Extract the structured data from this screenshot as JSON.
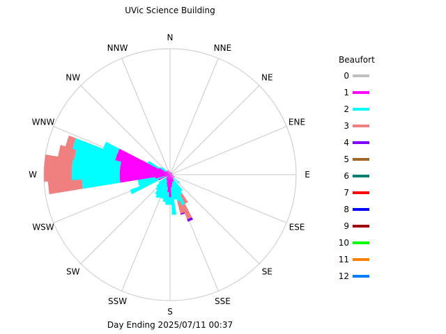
{
  "chart_data": {
    "type": "wind-rose",
    "title": "UVic Science Building",
    "subtitle": "Day Ending 2025/07/11 00:37",
    "directions": [
      "N",
      "NNE",
      "NE",
      "ENE",
      "E",
      "ESE",
      "SE",
      "SSE",
      "S",
      "SSW",
      "SW",
      "WSW",
      "W",
      "WNW",
      "NW",
      "NNW"
    ],
    "rmax": 1.0,
    "legend": {
      "title": "Beaufort",
      "placement": "right",
      "entries": [
        {
          "label": "0",
          "color": "#c0c0c0"
        },
        {
          "label": "1",
          "color": "#ff00ff"
        },
        {
          "label": "2",
          "color": "#00ffff"
        },
        {
          "label": "3",
          "color": "#f08080"
        },
        {
          "label": "4",
          "color": "#8000ff"
        },
        {
          "label": "5",
          "color": "#a0682a"
        },
        {
          "label": "6",
          "color": "#008070"
        },
        {
          "label": "7",
          "color": "#ff0000"
        },
        {
          "label": "8",
          "color": "#0000ff"
        },
        {
          "label": "9",
          "color": "#a00000"
        },
        {
          "label": "10",
          "color": "#00ff00"
        },
        {
          "label": "11",
          "color": "#ff8000"
        },
        {
          "label": "12",
          "color": "#0080ff"
        }
      ]
    },
    "bins": [
      {
        "deg": 240,
        "segments": [
          0.0,
          0.02
        ]
      },
      {
        "deg": 246,
        "segments": [
          0.0,
          0.1,
          0.24
        ]
      },
      {
        "deg": 252,
        "segments": [
          0.0,
          0.04,
          0.22
        ]
      },
      {
        "deg": 258,
        "segments": [
          0.0,
          0.12,
          0.14
        ]
      },
      {
        "deg": 264,
        "segments": [
          0.0,
          0.4,
          0.3,
          0.27
        ]
      },
      {
        "deg": 270,
        "segments": [
          0.0,
          0.4,
          0.38,
          0.22
        ]
      },
      {
        "deg": 276,
        "segments": [
          0.0,
          0.4,
          0.38,
          0.22
        ]
      },
      {
        "deg": 282,
        "segments": [
          0.0,
          0.4,
          0.37,
          0.13
        ]
      },
      {
        "deg": 288,
        "segments": [
          0.0,
          0.45,
          0.35,
          0.06
        ]
      },
      {
        "deg": 294,
        "segments": [
          0.0,
          0.45,
          0.12
        ]
      },
      {
        "deg": 300,
        "segments": [
          0.0,
          0.1,
          0.1
        ]
      },
      {
        "deg": 168,
        "segments": [
          0.0,
          0.08,
          0.12
        ]
      },
      {
        "deg": 162,
        "segments": [
          0.0,
          0.06,
          0.16,
          0.1,
          0.01
        ]
      },
      {
        "deg": 156,
        "segments": [
          0.0,
          0.06,
          0.2,
          0.12,
          0.02
        ]
      },
      {
        "deg": 150,
        "segments": [
          0.0,
          0.06,
          0.12,
          0.08
        ]
      },
      {
        "deg": 144,
        "segments": [
          0.0,
          0.04,
          0.12
        ]
      },
      {
        "deg": 174,
        "segments": [
          0.0,
          0.1,
          0.22
        ]
      },
      {
        "deg": 180,
        "segments": [
          0.0,
          0.18,
          0.06
        ]
      },
      {
        "deg": 186,
        "segments": [
          0.0,
          0.14,
          0.1
        ]
      },
      {
        "deg": 192,
        "segments": [
          0.0,
          0.1,
          0.12
        ]
      },
      {
        "deg": 198,
        "segments": [
          0.0,
          0.08,
          0.12
        ]
      },
      {
        "deg": 204,
        "segments": [
          0.0,
          0.06,
          0.14
        ]
      },
      {
        "deg": 210,
        "segments": [
          0.0,
          0.05,
          0.16
        ]
      },
      {
        "deg": 216,
        "segments": [
          0.0,
          0.05,
          0.14
        ]
      },
      {
        "deg": 222,
        "segments": [
          0.0,
          0.04,
          0.12
        ]
      },
      {
        "deg": 228,
        "segments": [
          0.0,
          0.04,
          0.1
        ]
      },
      {
        "deg": 234,
        "segments": [
          0.0,
          0.03,
          0.08
        ]
      },
      {
        "deg": 132,
        "segments": [
          0.0,
          0.04,
          0.06
        ]
      },
      {
        "deg": 120,
        "segments": [
          0.0,
          0.04
        ]
      },
      {
        "deg": 108,
        "segments": [
          0.0,
          0.03
        ]
      },
      {
        "deg": 96,
        "segments": [
          0.0,
          0.02
        ]
      },
      {
        "deg": 84,
        "segments": [
          0.0,
          0.02
        ]
      },
      {
        "deg": 72,
        "segments": [
          0.0,
          0.02
        ]
      },
      {
        "deg": 60,
        "segments": [
          0.0,
          0.02
        ]
      },
      {
        "deg": 48,
        "segments": [
          0.0,
          0.02
        ]
      },
      {
        "deg": 36,
        "segments": [
          0.0,
          0.02
        ]
      },
      {
        "deg": 24,
        "segments": [
          0.0,
          0.02
        ]
      },
      {
        "deg": 12,
        "segments": [
          0.0,
          0.02
        ]
      },
      {
        "deg": 0,
        "segments": [
          0.0,
          0.02
        ]
      },
      {
        "deg": 348,
        "segments": [
          0.0,
          0.03
        ]
      },
      {
        "deg": 336,
        "segments": [
          0.0,
          0.04
        ]
      },
      {
        "deg": 324,
        "segments": [
          0.0,
          0.04
        ]
      },
      {
        "deg": 312,
        "segments": [
          0.0,
          0.04,
          0.04
        ]
      },
      {
        "deg": 306,
        "segments": [
          0.0,
          0.04,
          0.06
        ]
      }
    ]
  }
}
